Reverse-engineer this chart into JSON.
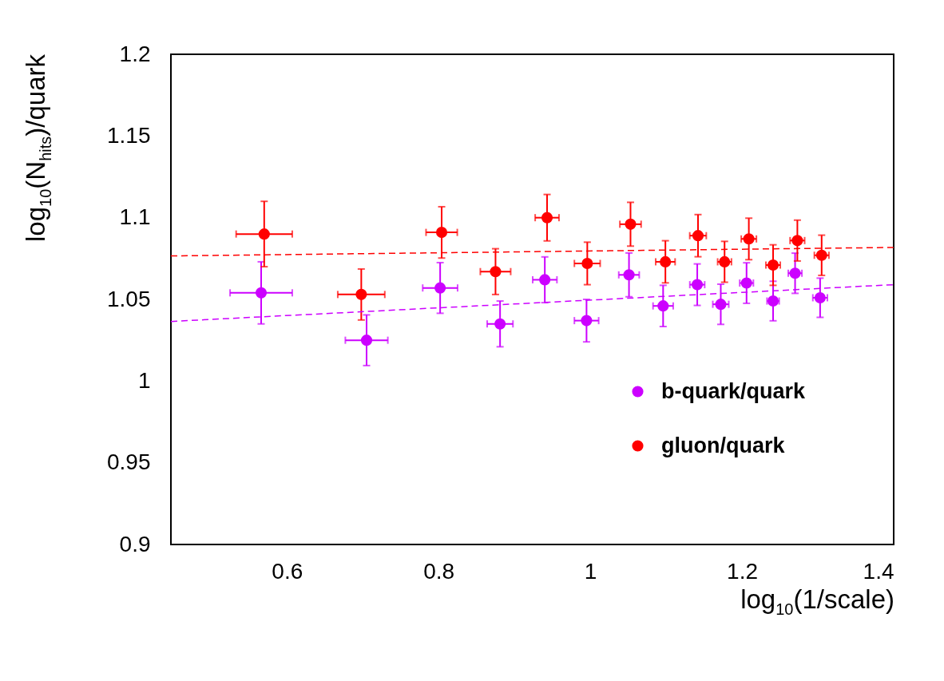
{
  "chart_data": {
    "type": "scatter",
    "xlabel": "log$_{10}$(1/scale)",
    "ylabel": "log$_{10}$(N$_{hits}$)/quark",
    "xlim": [
      0.447,
      1.4
    ],
    "ylim": [
      0.9,
      1.2
    ],
    "xticks": [
      0.6,
      0.8,
      1,
      1.2,
      1.4
    ],
    "yticks": [
      0.9,
      0.95,
      1,
      1.05,
      1.1,
      1.15,
      1.2
    ],
    "grid": false,
    "legend": "bottom right",
    "marker": "circle",
    "series": [
      {
        "name": "b-quark/quark",
        "color": "#cc00ff",
        "x": [
          0.566,
          0.705,
          0.802,
          0.881,
          0.94,
          0.995,
          1.051,
          1.096,
          1.141,
          1.172,
          1.206,
          1.241,
          1.27,
          1.303
        ],
        "values": [
          1.054,
          1.025,
          1.057,
          1.035,
          1.062,
          1.037,
          1.065,
          1.046,
          1.059,
          1.047,
          1.06,
          1.049,
          1.066,
          1.051
        ],
        "errors": [
          0.019,
          0.0155,
          0.0155,
          0.014,
          0.014,
          0.013,
          0.0134,
          0.0126,
          0.0127,
          0.0123,
          0.0124,
          0.0121,
          0.0123,
          0.012
        ],
        "xerrors": [
          0.041,
          0.028,
          0.023,
          0.017,
          0.016,
          0.016,
          0.0135,
          0.0133,
          0.0098,
          0.0105,
          0.009,
          0.008,
          0.009,
          0.0096
        ]
      },
      {
        "name": "gluon/quark",
        "color": "#ff0000",
        "x": [
          0.57,
          0.698,
          0.804,
          0.875,
          0.943,
          0.996,
          1.053,
          1.099,
          1.142,
          1.177,
          1.209,
          1.241,
          1.273,
          1.305
        ],
        "values": [
          1.09,
          1.053,
          1.091,
          1.067,
          1.1,
          1.072,
          1.096,
          1.073,
          1.089,
          1.073,
          1.087,
          1.071,
          1.086,
          1.077
        ],
        "errors": [
          0.02,
          0.0156,
          0.0157,
          0.014,
          0.0142,
          0.013,
          0.0134,
          0.0129,
          0.0129,
          0.0125,
          0.0127,
          0.0124,
          0.0125,
          0.0123
        ],
        "xerrors": [
          0.037,
          0.031,
          0.0206,
          0.02,
          0.0157,
          0.017,
          0.014,
          0.0128,
          0.0109,
          0.0091,
          0.01,
          0.0095,
          0.0096,
          0.0096
        ]
      },
      {
        "color": "#cc00ff",
        "type": "line",
        "marker": "none",
        "line_style": "dashed",
        "x": [
          0.447,
          1.4
        ],
        "values": [
          1.0365,
          1.059
        ]
      },
      {
        "color": "#ff0000",
        "type": "line",
        "marker": "none",
        "line_style": "dashed",
        "x": [
          0.447,
          1.4
        ],
        "values": [
          1.0766,
          1.0818
        ]
      }
    ]
  }
}
